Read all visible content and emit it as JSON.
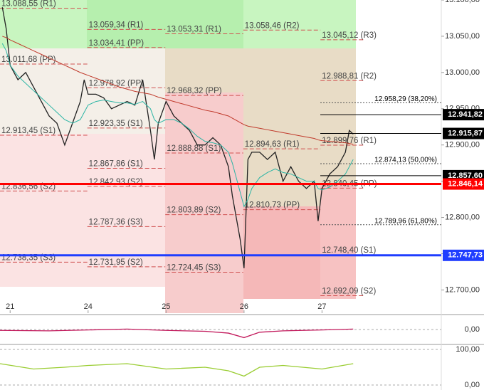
{
  "chart_data": {
    "type": "line",
    "xlim": [
      -0.13,
      5.53
    ],
    "ylim": [
      12668,
      13100
    ],
    "xticks": [
      {
        "value": 0,
        "label": "21"
      },
      {
        "value": 1,
        "label": "24"
      },
      {
        "value": 2,
        "label": "25"
      },
      {
        "value": 3,
        "label": "26"
      },
      {
        "value": 4,
        "label": "27"
      }
    ],
    "yticks": [
      {
        "value": 13100,
        "label": "13.100,00"
      },
      {
        "value": 13050,
        "label": "13.050,00"
      },
      {
        "value": 13000,
        "label": "13.000,00"
      },
      {
        "value": 12950,
        "label": "12.950,00"
      },
      {
        "value": 12900,
        "label": "12.900,00"
      },
      {
        "value": 12850,
        "label": "12.850,00"
      },
      {
        "value": 12800,
        "label": "12.800,00"
      },
      {
        "value": 12750,
        "label": "12.750,00"
      },
      {
        "value": 12700,
        "label": "12.700,00"
      }
    ],
    "x": [
      -0.1,
      -0.05,
      0,
      0.1,
      0.2,
      0.3,
      0.4,
      0.5,
      0.6,
      0.7,
      0.8,
      0.9,
      0.95,
      1.0,
      1.1,
      1.2,
      1.3,
      1.4,
      1.5,
      1.6,
      1.7,
      1.8,
      1.85,
      1.9,
      2.0,
      2.1,
      2.2,
      2.3,
      2.4,
      2.5,
      2.6,
      2.7,
      2.8,
      2.85,
      2.9,
      2.95,
      3.0,
      3.05,
      3.1,
      3.2,
      3.3,
      3.4,
      3.5,
      3.6,
      3.7,
      3.8,
      3.9,
      3.95,
      4.0,
      4.1,
      4.2,
      4.3,
      4.35,
      4.4
    ],
    "series": [
      {
        "color": "#222222",
        "values": [
          13090,
          13060,
          13010,
          12990,
          13000,
          12980,
          12960,
          12940,
          12930,
          12900,
          12930,
          12960,
          12990,
          12970,
          12970,
          12965,
          12950,
          12955,
          12960,
          12955,
          12990,
          12920,
          12880,
          12930,
          12960,
          12940,
          12930,
          12920,
          12900,
          12900,
          12910,
          12900,
          12870,
          12830,
          12800,
          12770,
          12730,
          12880,
          12890,
          12890,
          12880,
          12890,
          12850,
          12870,
          12850,
          12840,
          12850,
          12795,
          12840,
          12860,
          12870,
          12890,
          12920,
          12915
        ]
      },
      {
        "color": "#c0392b",
        "values": [
          13050,
          13048,
          13045,
          13040,
          13035,
          13030,
          13025,
          13020,
          13015,
          13010,
          13005,
          13000,
          12998,
          12996,
          12992,
          12988,
          12984,
          12980,
          12977,
          12974,
          12972,
          12970,
          12968,
          12966,
          12963,
          12960,
          12957,
          12954,
          12951,
          12948,
          12946,
          12943,
          12940,
          12937,
          12934,
          12931,
          12928,
          12926,
          12925,
          12923,
          12921,
          12919,
          12917,
          12915,
          12913,
          12911,
          12909,
          12907,
          12906,
          12905,
          12904,
          12903,
          12902,
          12901
        ]
      },
      {
        "color": "#2bb5a5",
        "values": [
          13040,
          13030,
          13010,
          12995,
          12985,
          12975,
          12965,
          12955,
          12945,
          12935,
          12930,
          12935,
          12945,
          12955,
          12960,
          12962,
          12960,
          12958,
          12958,
          12956,
          12960,
          12950,
          12935,
          12930,
          12935,
          12935,
          12930,
          12922,
          12912,
          12905,
          12903,
          12900,
          12890,
          12875,
          12855,
          12835,
          12815,
          12825,
          12840,
          12855,
          12862,
          12867,
          12862,
          12860,
          12855,
          12850,
          12850,
          12840,
          12838,
          12842,
          12850,
          12860,
          12870,
          12880
        ]
      }
    ],
    "levels": [
      {
        "label": "13.088,55 (R1)",
        "value": 13088.55,
        "from": -0.13,
        "to": 0.99
      },
      {
        "label": "13.011,68 (PP)",
        "value": 13011.68,
        "from": -0.13,
        "to": 0.99
      },
      {
        "label": "12.913,45 (S1)",
        "value": 12913.45,
        "from": -0.13,
        "to": 0.99
      },
      {
        "label": "12.836,56 (S2)",
        "value": 12836.56,
        "from": -0.13,
        "to": 0.99
      },
      {
        "label": "12.738,35 (S3)",
        "value": 12738.35,
        "from": -0.13,
        "to": 0.99
      },
      {
        "label": "13.059,34 (R1)",
        "value": 13059.34,
        "from": 0.99,
        "to": 1.99
      },
      {
        "label": "13.034,41 (PP)",
        "value": 13034.41,
        "from": 0.99,
        "to": 1.99
      },
      {
        "label": "12.978,92 (PP)",
        "value": 12978.92,
        "from": 0.99,
        "to": 1.99
      },
      {
        "label": "12.923,35 (S1)",
        "value": 12923.35,
        "from": 0.99,
        "to": 1.99
      },
      {
        "label": "12.867,86 (S1)",
        "value": 12867.86,
        "from": 0.99,
        "to": 1.99
      },
      {
        "label": "12.842,93 (S2)",
        "value": 12842.93,
        "from": 0.99,
        "to": 1.99
      },
      {
        "label": "12.787,36 (S3)",
        "value": 12787.36,
        "from": 0.99,
        "to": 1.99
      },
      {
        "label": "12.731,95 (S2)",
        "value": 12731.95,
        "from": 0.99,
        "to": 1.99
      },
      {
        "label": "13.053,31 (R1)",
        "value": 13053.31,
        "from": 1.99,
        "to": 2.99
      },
      {
        "label": "12.968,32 (PP)",
        "value": 12968.32,
        "from": 1.99,
        "to": 2.99
      },
      {
        "label": "12.888,88 (S1)",
        "value": 12888.88,
        "from": 1.99,
        "to": 2.99
      },
      {
        "label": "12.803,89 (S2)",
        "value": 12803.89,
        "from": 1.99,
        "to": 2.99
      },
      {
        "label": "12.724,45 (S3)",
        "value": 12724.45,
        "from": 1.99,
        "to": 2.99
      },
      {
        "label": "13.058,46 (R2)",
        "value": 13058.46,
        "from": 2.99,
        "to": 3.98
      },
      {
        "label": "12.894,63 (R1)",
        "value": 12894.63,
        "from": 2.99,
        "to": 3.98
      },
      {
        "label": "12.810,73 (PP)",
        "value": 12810.73,
        "from": 2.99,
        "to": 3.98
      },
      {
        "label": "13.045,12 (R3)",
        "value": 13045.12,
        "from": 3.98,
        "to": 4.55
      },
      {
        "label": "12.988,81 (R2)",
        "value": 12988.81,
        "from": 3.98,
        "to": 4.55
      },
      {
        "label": "12.899,76 (R1)",
        "value": 12899.76,
        "from": 3.98,
        "to": 4.55
      },
      {
        "label": "12.840,45 (PP)",
        "value": 12840.45,
        "from": 3.98,
        "to": 4.55
      },
      {
        "label": "12.748,40 (S1)",
        "value": 12748.4,
        "from": 3.98,
        "to": 4.55
      },
      {
        "label": "12.692,09 (S2)",
        "value": 12692.09,
        "from": 3.98,
        "to": 4.55
      }
    ],
    "fib_levels": [
      {
        "label": "12.958,29 (38,20%)",
        "value": 12958.29
      },
      {
        "label": "12.874,13 (50,00%)",
        "value": 12874.13
      },
      {
        "label": "12.789,96 (61,80%)",
        "value": 12789.96
      }
    ],
    "price_tags": [
      {
        "label": "12.941,82",
        "value": 12941.82,
        "color": "#000000"
      },
      {
        "label": "12.915,87",
        "value": 12915.87,
        "color": "#000000"
      },
      {
        "label": "12.857,60",
        "value": 12857.6,
        "color": "#000000"
      },
      {
        "label": "12.846,14",
        "value": 12846.14,
        "color": "#ff0000"
      },
      {
        "label": "12.747,73",
        "value": 12747.73,
        "color": "#1f3dff"
      }
    ],
    "panels": [
      {
        "ylim": [
          -30,
          30
        ],
        "yticks": [
          {
            "value": 0,
            "label": "0,00"
          }
        ],
        "color": "#c2185b",
        "x": [
          -0.13,
          0.5,
          1.0,
          1.5,
          2.0,
          2.5,
          2.8,
          3.0,
          3.2,
          3.5,
          4.0,
          4.4
        ],
        "values": [
          -2,
          -3,
          -1,
          1,
          -2,
          -4,
          -8,
          -18,
          -6,
          -3,
          -1,
          1
        ]
      },
      {
        "ylim": [
          -10,
          110
        ],
        "yticks": [
          {
            "value": 100,
            "label": "100,00"
          },
          {
            "value": 0,
            "label": "0,00"
          }
        ],
        "color": "#9acd32",
        "x": [
          -0.13,
          0.3,
          0.7,
          1.0,
          1.5,
          2.0,
          2.5,
          2.8,
          3.0,
          3.2,
          3.5,
          4.0,
          4.4
        ],
        "values": [
          60,
          45,
          50,
          55,
          60,
          45,
          50,
          40,
          25,
          50,
          55,
          45,
          60
        ]
      }
    ]
  }
}
